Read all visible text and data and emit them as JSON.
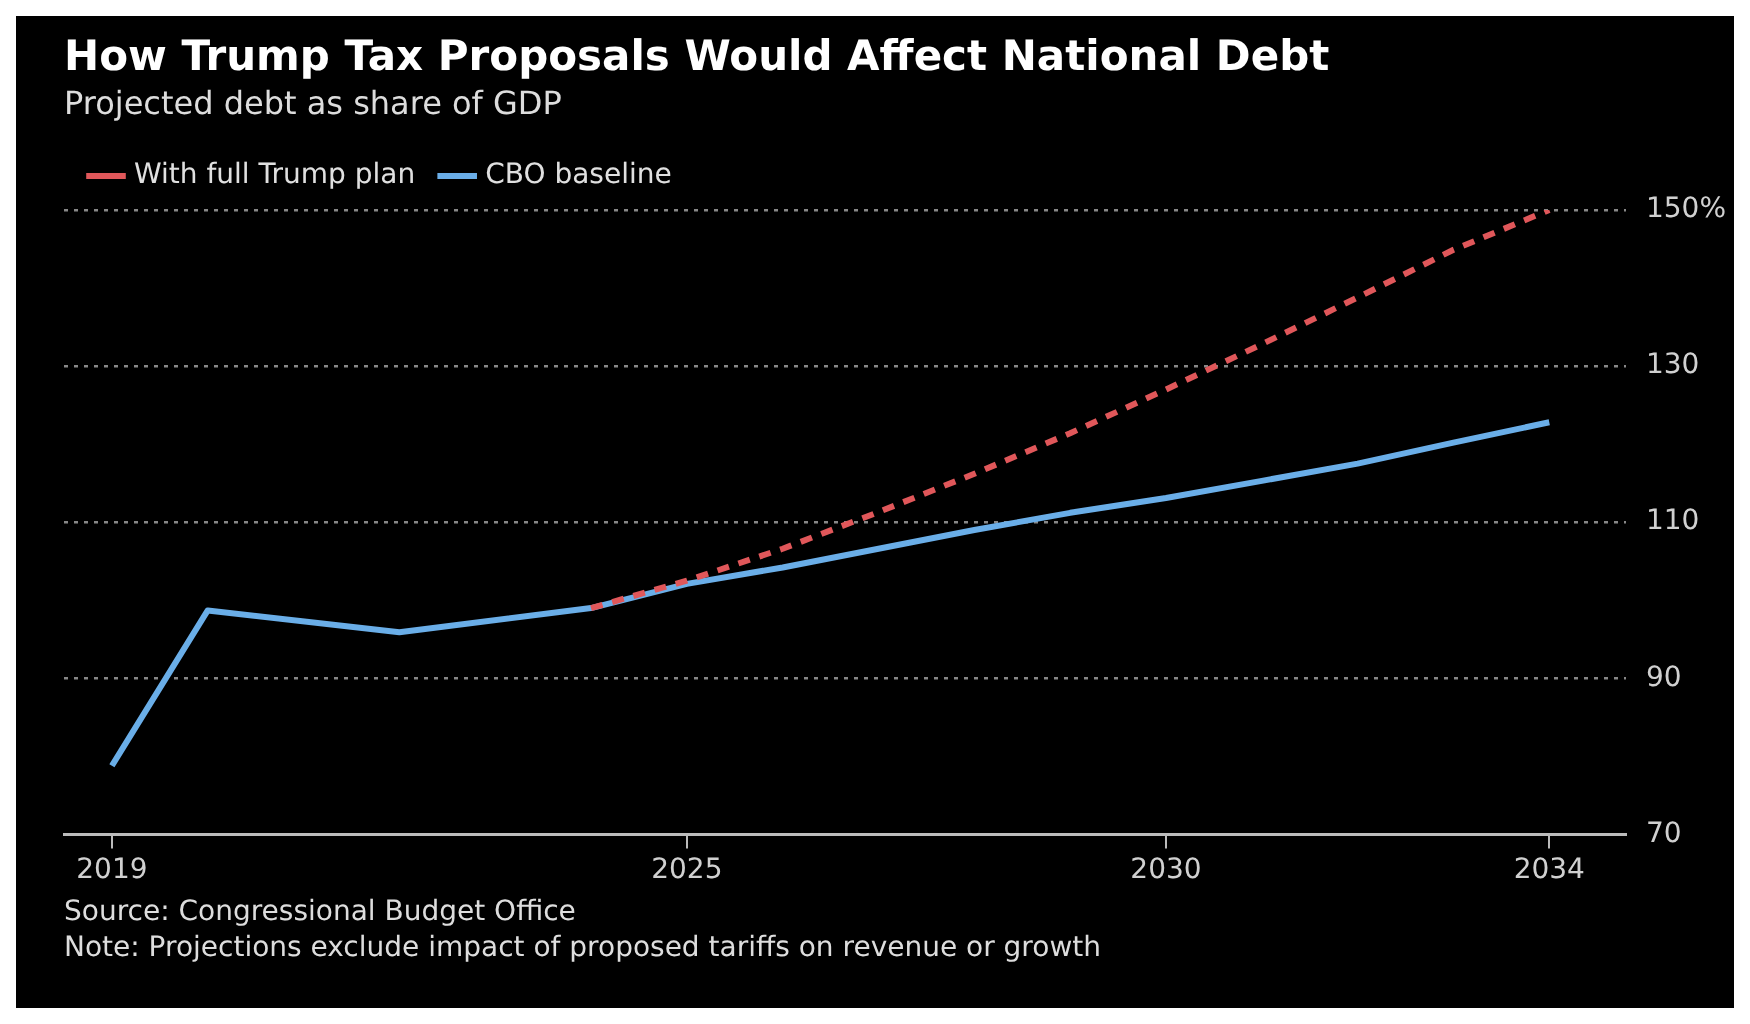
{
  "chart_data": {
    "type": "line",
    "title": "How Trump Tax Proposals Would Affect National Debt",
    "subtitle": "Projected debt as share of GDP",
    "series": [
      {
        "name": "CBO baseline",
        "color": "#6aaee8",
        "line_style": "solid",
        "x": [
          2019,
          2020,
          2022,
          2024,
          2025,
          2026,
          2027,
          2028,
          2029,
          2030,
          2031,
          2032,
          2033,
          2034
        ],
        "values": [
          78.8,
          98.7,
          95.9,
          99,
          102.1,
          104.2,
          106.6,
          109,
          111.2,
          113.1,
          115.3,
          117.5,
          120.2,
          122.8
        ]
      },
      {
        "name": "With full Trump plan",
        "color": "#e0575a",
        "line_style": "dashed",
        "x": [
          2024,
          2025,
          2026,
          2027,
          2028,
          2029,
          2030,
          2031,
          2032,
          2033,
          2034
        ],
        "values": [
          99,
          102.5,
          106.6,
          111.3,
          116.2,
          121.4,
          127,
          132.8,
          138.8,
          144.9,
          150
        ]
      }
    ],
    "xlim": [
      2018.5,
      2034.8
    ],
    "xticks": [
      2019,
      2025,
      2030,
      2034
    ],
    "ylim": [
      70,
      150
    ],
    "yticks": [
      70,
      90,
      110,
      130,
      {
        "value": 150,
        "label": "150%"
      }
    ],
    "grid": "y",
    "legend": "top left",
    "marker": "none",
    "annotations": [
      "Source: Congressional Budget Office",
      "Note: Projections exclude impact of proposed tariffs on revenue or growth"
    ]
  }
}
